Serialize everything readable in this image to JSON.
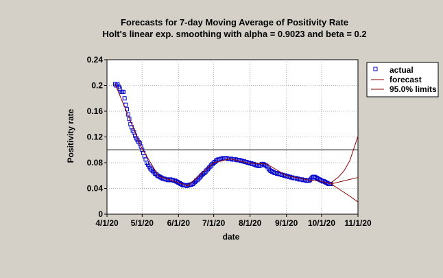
{
  "chart_data": {
    "type": "line",
    "title": "Forecasts for 7-day Moving Average of Positivity Rate",
    "subtitle": "Holt's linear exp. smoothing with alpha = 0.9023 and beta = 0.2",
    "xlabel": "date",
    "ylabel": "Positivity rate",
    "ylim": [
      0,
      0.24
    ],
    "yticks": [
      0,
      0.04,
      0.08,
      0.12,
      0.16,
      0.2,
      0.24
    ],
    "ytick_labels": [
      "0",
      "0.04",
      "0.08",
      "0.12",
      "0.16",
      "0.2",
      "0.24"
    ],
    "xlim": [
      "2020-04-01",
      "2020-11-01"
    ],
    "xticks": [
      "2020-04-01",
      "2020-05-01",
      "2020-06-01",
      "2020-07-01",
      "2020-08-01",
      "2020-09-01",
      "2020-10-01",
      "2020-11-01"
    ],
    "xtick_labels": [
      "4/1/20",
      "5/1/20",
      "6/1/20",
      "7/1/20",
      "8/1/20",
      "9/1/20",
      "10/1/20",
      "11/1/20"
    ],
    "grid": true,
    "legend_position": "right",
    "reference_line": 0.1,
    "series": [
      {
        "name": "actual",
        "style": "markers",
        "color": "#0000cc",
        "x": [
          "2020-04-08",
          "2020-04-09",
          "2020-04-10",
          "2020-04-11",
          "2020-04-12",
          "2020-04-13",
          "2020-04-14",
          "2020-04-15",
          "2020-04-16",
          "2020-04-17",
          "2020-04-18",
          "2020-04-19",
          "2020-04-20",
          "2020-04-21",
          "2020-04-22",
          "2020-04-23",
          "2020-04-24",
          "2020-04-25",
          "2020-04-26",
          "2020-04-27",
          "2020-04-28",
          "2020-04-29",
          "2020-04-30",
          "2020-05-01",
          "2020-05-02",
          "2020-05-03",
          "2020-05-04",
          "2020-05-05",
          "2020-05-06",
          "2020-05-07",
          "2020-05-08",
          "2020-05-09",
          "2020-05-10",
          "2020-05-11",
          "2020-05-12",
          "2020-05-13",
          "2020-05-14",
          "2020-05-15",
          "2020-05-16",
          "2020-05-17",
          "2020-05-18",
          "2020-05-19",
          "2020-05-20",
          "2020-05-21",
          "2020-05-22",
          "2020-05-23",
          "2020-05-24",
          "2020-05-25",
          "2020-05-26",
          "2020-05-27",
          "2020-05-28",
          "2020-05-29",
          "2020-05-30",
          "2020-05-31",
          "2020-06-01",
          "2020-06-02",
          "2020-06-03",
          "2020-06-04",
          "2020-06-05",
          "2020-06-06",
          "2020-06-07",
          "2020-06-08",
          "2020-06-09",
          "2020-06-10",
          "2020-06-11",
          "2020-06-12",
          "2020-06-13",
          "2020-06-14",
          "2020-06-15",
          "2020-06-16",
          "2020-06-17",
          "2020-06-18",
          "2020-06-19",
          "2020-06-20",
          "2020-06-21",
          "2020-06-22",
          "2020-06-23",
          "2020-06-24",
          "2020-06-25",
          "2020-06-26",
          "2020-06-27",
          "2020-06-28",
          "2020-06-29",
          "2020-06-30",
          "2020-07-01",
          "2020-07-02",
          "2020-07-03",
          "2020-07-04",
          "2020-07-05",
          "2020-07-06",
          "2020-07-07",
          "2020-07-08",
          "2020-07-09",
          "2020-07-10",
          "2020-07-11",
          "2020-07-12",
          "2020-07-13",
          "2020-07-14",
          "2020-07-15",
          "2020-07-16",
          "2020-07-17",
          "2020-07-18",
          "2020-07-19",
          "2020-07-20",
          "2020-07-21",
          "2020-07-22",
          "2020-07-23",
          "2020-07-24",
          "2020-07-25",
          "2020-07-26",
          "2020-07-27",
          "2020-07-28",
          "2020-07-29",
          "2020-07-30",
          "2020-07-31",
          "2020-08-01",
          "2020-08-02",
          "2020-08-03",
          "2020-08-04",
          "2020-08-05",
          "2020-08-06",
          "2020-08-07",
          "2020-08-08",
          "2020-08-09",
          "2020-08-10",
          "2020-08-11",
          "2020-08-12",
          "2020-08-13",
          "2020-08-14",
          "2020-08-15",
          "2020-08-16",
          "2020-08-17",
          "2020-08-18",
          "2020-08-19",
          "2020-08-20",
          "2020-08-21",
          "2020-08-22",
          "2020-08-23",
          "2020-08-24",
          "2020-08-25",
          "2020-08-26",
          "2020-08-27",
          "2020-08-28",
          "2020-08-29",
          "2020-08-30",
          "2020-08-31",
          "2020-09-01",
          "2020-09-02",
          "2020-09-03",
          "2020-09-04",
          "2020-09-05",
          "2020-09-06",
          "2020-09-07",
          "2020-09-08",
          "2020-09-09",
          "2020-09-10",
          "2020-09-11",
          "2020-09-12",
          "2020-09-13",
          "2020-09-14",
          "2020-09-15",
          "2020-09-16",
          "2020-09-17",
          "2020-09-18",
          "2020-09-19",
          "2020-09-20",
          "2020-09-21",
          "2020-09-22",
          "2020-09-23",
          "2020-09-24",
          "2020-09-25",
          "2020-09-26",
          "2020-09-27",
          "2020-09-28",
          "2020-09-29",
          "2020-09-30",
          "2020-10-01",
          "2020-10-02",
          "2020-10-03",
          "2020-10-04",
          "2020-10-05",
          "2020-10-06",
          "2020-10-07",
          "2020-10-08",
          "2020-10-09"
        ],
        "y": [
          0.202,
          0.2,
          0.202,
          0.198,
          0.195,
          0.19,
          0.19,
          0.19,
          0.18,
          0.17,
          0.163,
          0.155,
          0.148,
          0.14,
          0.135,
          0.13,
          0.127,
          0.122,
          0.118,
          0.115,
          0.112,
          0.11,
          0.105,
          0.1,
          0.095,
          0.09,
          0.085,
          0.08,
          0.077,
          0.074,
          0.071,
          0.069,
          0.067,
          0.065,
          0.063,
          0.062,
          0.06,
          0.059,
          0.058,
          0.057,
          0.056,
          0.055,
          0.055,
          0.054,
          0.054,
          0.053,
          0.053,
          0.054,
          0.053,
          0.053,
          0.052,
          0.052,
          0.051,
          0.05,
          0.049,
          0.048,
          0.047,
          0.046,
          0.045,
          0.045,
          0.045,
          0.044,
          0.045,
          0.045,
          0.046,
          0.046,
          0.047,
          0.048,
          0.05,
          0.052,
          0.053,
          0.055,
          0.057,
          0.059,
          0.061,
          0.063,
          0.064,
          0.066,
          0.068,
          0.07,
          0.072,
          0.074,
          0.076,
          0.078,
          0.08,
          0.081,
          0.083,
          0.084,
          0.085,
          0.085,
          0.086,
          0.086,
          0.087,
          0.087,
          0.087,
          0.087,
          0.086,
          0.086,
          0.086,
          0.086,
          0.085,
          0.085,
          0.085,
          0.085,
          0.084,
          0.084,
          0.084,
          0.083,
          0.083,
          0.082,
          0.082,
          0.081,
          0.081,
          0.08,
          0.08,
          0.079,
          0.079,
          0.078,
          0.078,
          0.077,
          0.076,
          0.076,
          0.075,
          0.075,
          0.076,
          0.078,
          0.078,
          0.077,
          0.076,
          0.075,
          0.073,
          0.07,
          0.068,
          0.067,
          0.066,
          0.065,
          0.064,
          0.064,
          0.063,
          0.063,
          0.062,
          0.062,
          0.061,
          0.061,
          0.06,
          0.06,
          0.059,
          0.059,
          0.058,
          0.058,
          0.057,
          0.057,
          0.056,
          0.056,
          0.056,
          0.055,
          0.055,
          0.054,
          0.054,
          0.054,
          0.053,
          0.053,
          0.053,
          0.052,
          0.052,
          0.052,
          0.053,
          0.055,
          0.057,
          0.058,
          0.058,
          0.057,
          0.056,
          0.055,
          0.054,
          0.053,
          0.052,
          0.051,
          0.051,
          0.05,
          0.049,
          0.048,
          0.047,
          0.047,
          0.047
        ]
      },
      {
        "name": "forecast",
        "style": "line",
        "color": "#8b0000",
        "x": [
          "2020-04-08",
          "2020-04-30",
          "2020-05-15",
          "2020-06-01",
          "2020-06-09",
          "2020-07-01",
          "2020-07-15",
          "2020-08-01",
          "2020-08-15",
          "2020-09-01",
          "2020-09-20",
          "2020-10-01",
          "2020-10-09",
          "2020-11-01"
        ],
        "y": [
          0.202,
          0.105,
          0.059,
          0.049,
          0.044,
          0.08,
          0.086,
          0.079,
          0.078,
          0.06,
          0.053,
          0.051,
          0.047,
          0.057
        ]
      },
      {
        "name": "95.0% limits",
        "style": "line",
        "color": "#8b0000",
        "bands": [
          {
            "x": [
              "2020-10-09",
              "2020-10-15",
              "2020-10-20",
              "2020-10-25",
              "2020-11-01"
            ],
            "y": [
              0.049,
              0.057,
              0.067,
              0.083,
              0.121
            ]
          },
          {
            "x": [
              "2020-10-09",
              "2020-10-15",
              "2020-10-20",
              "2020-10-25",
              "2020-11-01"
            ],
            "y": [
              0.047,
              0.04,
              0.034,
              0.028,
              0.019
            ]
          }
        ]
      }
    ]
  }
}
